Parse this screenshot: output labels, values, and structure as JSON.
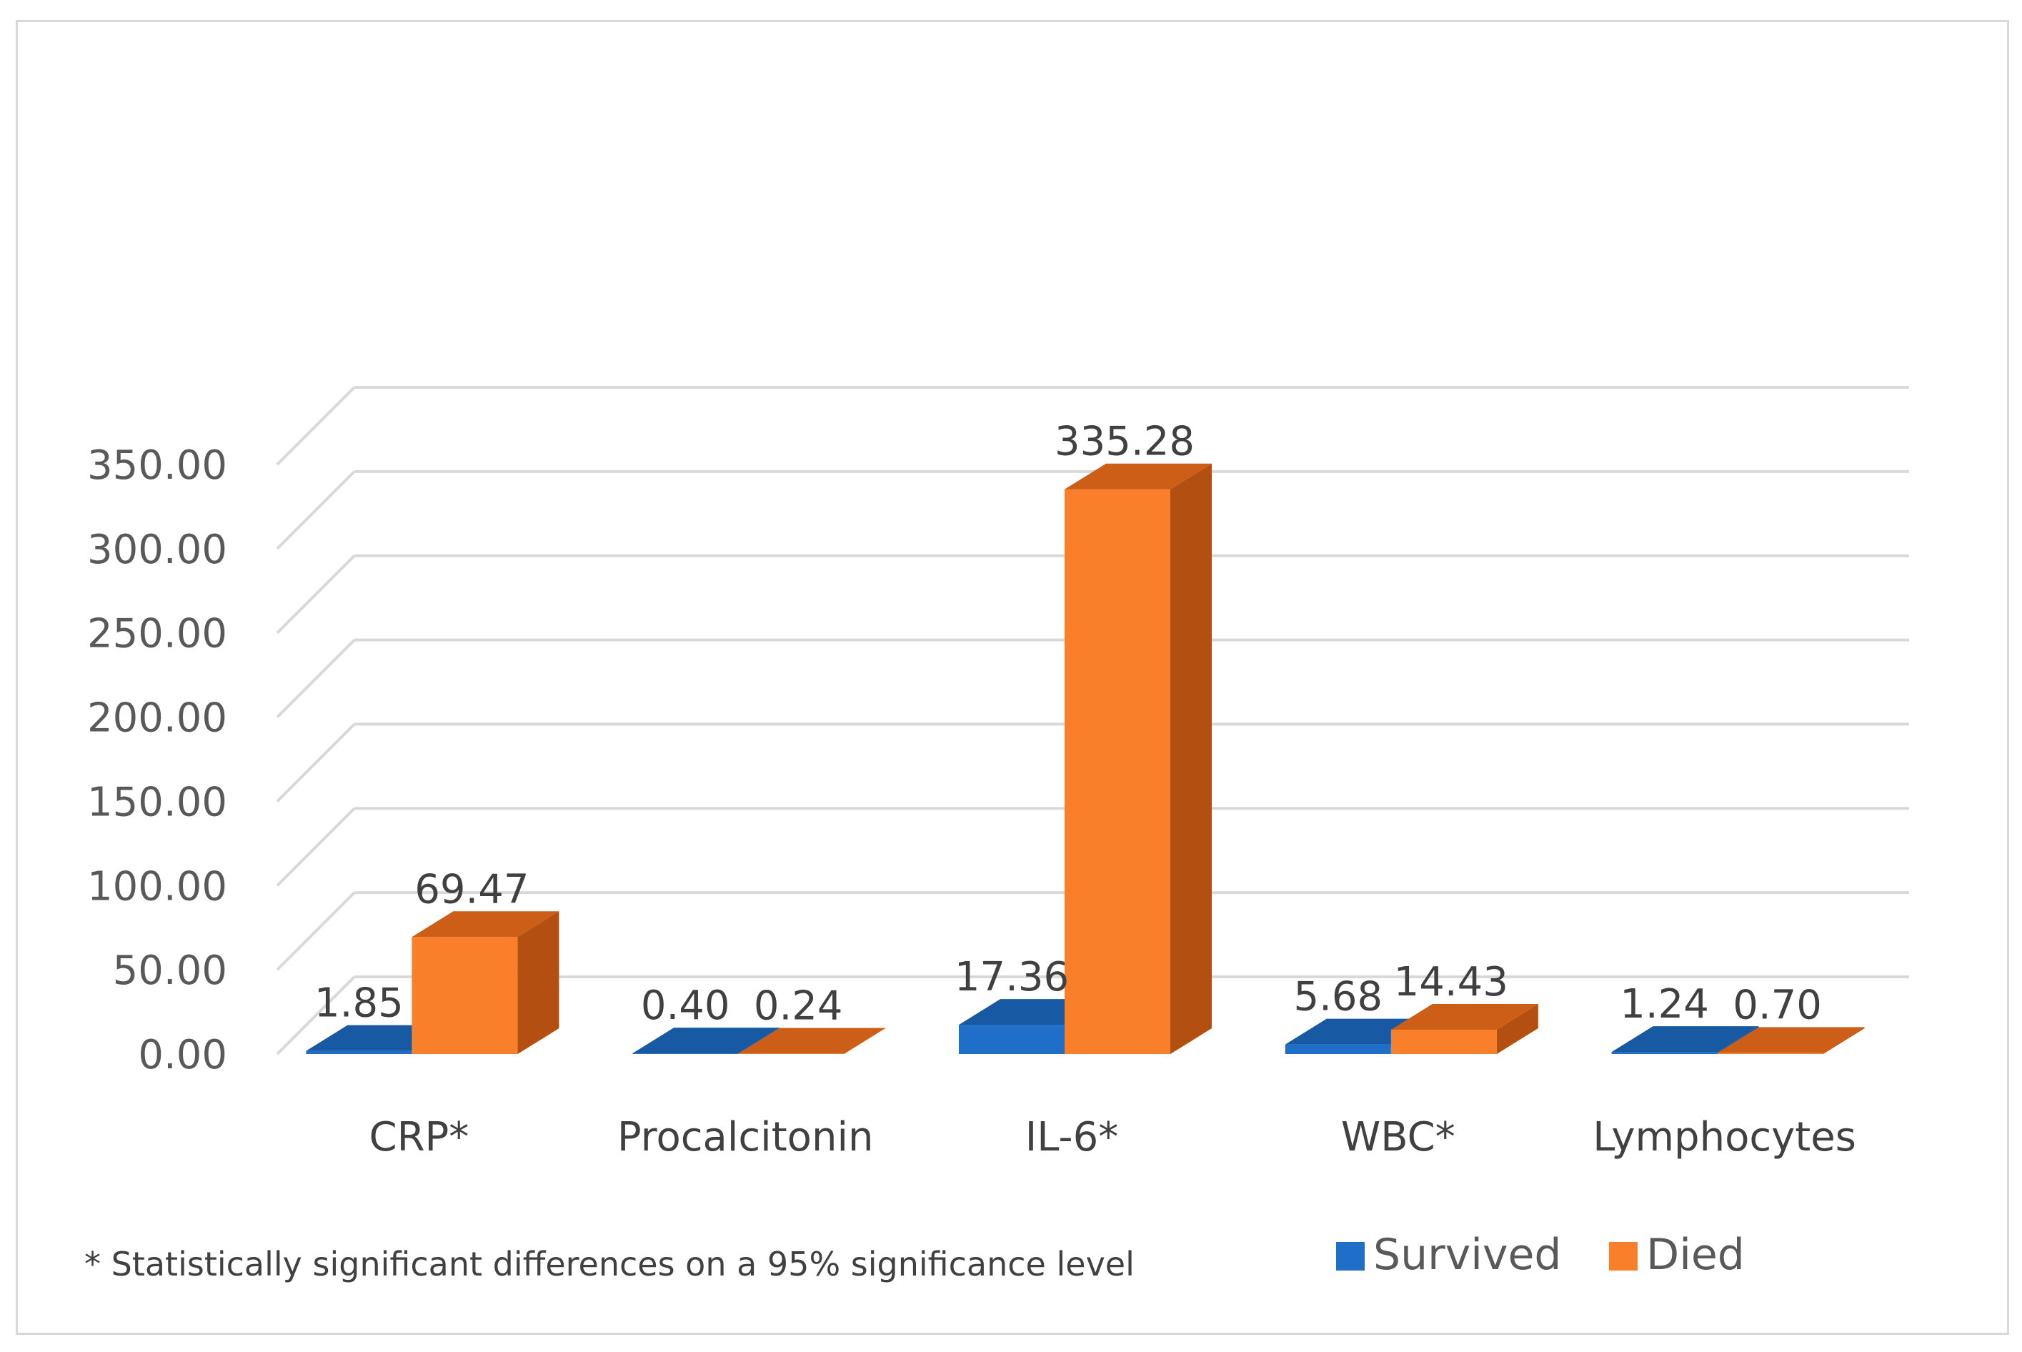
{
  "chart_data": {
    "type": "bar",
    "style": "3d-clustered-column",
    "title": "",
    "xlabel": "",
    "ylabel": "",
    "ylim": [
      0,
      350
    ],
    "ytick_step": 50,
    "ytick_labels": [
      "0.00",
      "50.00",
      "100.00",
      "150.00",
      "200.00",
      "250.00",
      "300.00",
      "350.00"
    ],
    "grid": true,
    "categories": [
      "CRP*",
      "Procalcitonin",
      "IL-6*",
      "WBC*",
      "Lymphocytes"
    ],
    "series": [
      {
        "name": "Survived",
        "values": [
          1.85,
          0.4,
          17.36,
          5.68,
          1.24
        ],
        "labels": [
          "1.85",
          "0.40",
          "17.36",
          "5.68",
          "1.24"
        ],
        "color": "#1f6fc9",
        "top_color": "#175aa3",
        "side_color": "#1550a0"
      },
      {
        "name": "Died",
        "values": [
          69.47,
          0.24,
          335.28,
          14.43,
          0.7
        ],
        "labels": [
          "69.47",
          "0.24",
          "335.28",
          "14.43",
          "0.70"
        ],
        "color": "#fa7f2a",
        "top_color": "#cc5e18",
        "side_color": "#b44f12"
      }
    ],
    "legend": {
      "position": "bottom-right",
      "entries": [
        "Survived",
        "Died"
      ]
    },
    "footnote": "* Statistically significant differences on a 95% significance level"
  }
}
